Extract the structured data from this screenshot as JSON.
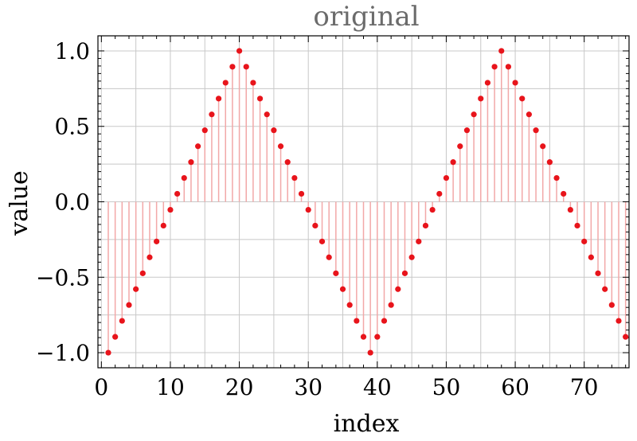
{
  "chart_data": {
    "type": "scatter",
    "title": "original",
    "xlabel": "index",
    "ylabel": "value",
    "xlim": [
      -0.5,
      76.5
    ],
    "ylim": [
      -1.1,
      1.1
    ],
    "grid": true,
    "filling": "stems-to-axis",
    "colors": {
      "point": "#e8141b",
      "stem": "#f2a8a8",
      "title": "#6b6b6b"
    },
    "x_ticks": [
      0,
      10,
      20,
      30,
      40,
      50,
      60,
      70
    ],
    "x_tick_labels": [
      "0",
      "10",
      "20",
      "30",
      "40",
      "50",
      "60",
      "70"
    ],
    "y_ticks": [
      -1.0,
      -0.5,
      0.0,
      0.5,
      1.0
    ],
    "y_tick_labels": [
      "−1.0",
      "−0.5",
      "0.0",
      "0.5",
      "1.0"
    ],
    "series": [
      {
        "x": [
          1,
          2,
          3,
          4,
          5,
          6,
          7,
          8,
          9,
          10,
          11,
          12,
          13,
          14,
          15,
          16,
          17,
          18,
          19,
          20,
          21,
          22,
          23,
          24,
          25,
          26,
          27,
          28,
          29,
          30,
          31,
          32,
          33,
          34,
          35,
          36,
          37,
          38,
          39,
          40,
          41,
          42,
          43,
          44,
          45,
          46,
          47,
          48,
          49,
          50,
          51,
          52,
          53,
          54,
          55,
          56,
          57,
          58,
          59,
          60,
          61,
          62,
          63,
          64,
          65,
          66,
          67,
          68,
          69,
          70,
          71,
          72,
          73,
          74,
          75,
          76
        ],
        "y": [
          -1.0,
          -0.895,
          -0.789,
          -0.684,
          -0.579,
          -0.474,
          -0.368,
          -0.263,
          -0.158,
          -0.053,
          0.053,
          0.158,
          0.263,
          0.368,
          0.474,
          0.579,
          0.684,
          0.789,
          0.895,
          1.0,
          0.895,
          0.789,
          0.684,
          0.579,
          0.474,
          0.368,
          0.263,
          0.158,
          0.053,
          -0.053,
          -0.158,
          -0.263,
          -0.368,
          -0.474,
          -0.579,
          -0.684,
          -0.789,
          -0.895,
          -1.0,
          -0.895,
          -0.789,
          -0.684,
          -0.579,
          -0.474,
          -0.368,
          -0.263,
          -0.158,
          -0.053,
          0.053,
          0.158,
          0.263,
          0.368,
          0.474,
          0.579,
          0.684,
          0.789,
          0.895,
          1.0,
          0.895,
          0.789,
          0.684,
          0.579,
          0.474,
          0.368,
          0.263,
          0.158,
          0.053,
          -0.053,
          -0.158,
          -0.263,
          -0.368,
          -0.474,
          -0.579,
          -0.684,
          -0.789,
          -0.895
        ]
      }
    ]
  }
}
